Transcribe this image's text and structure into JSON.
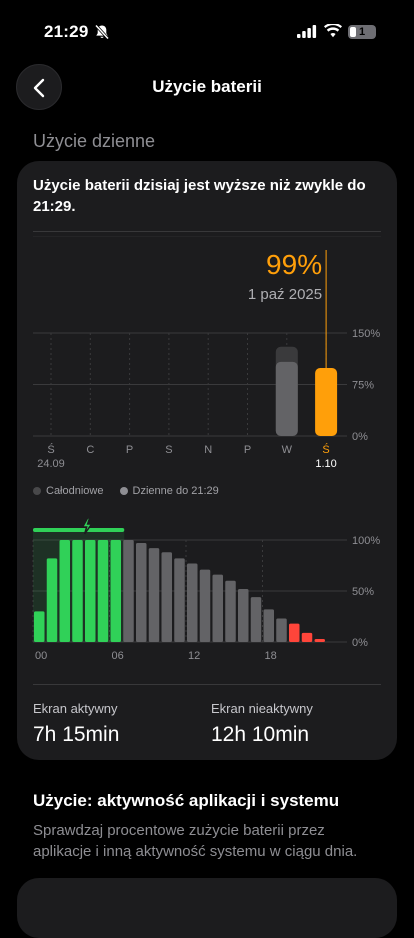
{
  "status": {
    "time": "21:29",
    "battery_level": "1",
    "icons": [
      "bell-slash-icon",
      "signal-icon",
      "wifi-icon",
      "battery-icon"
    ]
  },
  "nav": {
    "title": "Użycie baterii",
    "back_icon": "chevron-left-icon"
  },
  "section": {
    "title": "Użycie dzienne"
  },
  "card": {
    "message": "Użycie baterii dzisiaj jest wyższe niż zwykle do 21:29."
  },
  "chart_data": [
    {
      "type": "bar",
      "highlight": {
        "value": "99%",
        "date": "1 paź 2025"
      },
      "categories": [
        "Ś",
        "C",
        "P",
        "S",
        "N",
        "P",
        "W",
        "Ś"
      ],
      "category_sublabels": [
        "24.09",
        "",
        "",
        "",
        "",
        "",
        "",
        "1.10"
      ],
      "y_ticks": [
        "150%",
        "75%",
        "0%"
      ],
      "ylim": [
        0,
        150
      ],
      "series": [
        {
          "name": "Całodniowe",
          "values": [
            0,
            0,
            0,
            0,
            0,
            0,
            130,
            0
          ]
        },
        {
          "name": "Dzienne do 21:29",
          "values": [
            0,
            0,
            0,
            0,
            0,
            0,
            108,
            99
          ]
        }
      ],
      "colors": {
        "full_day": "#3a3a3c",
        "to_time": "#636366",
        "today": "#ff9f0a"
      }
    },
    {
      "type": "bar",
      "x_ticks": [
        "00",
        "06",
        "12",
        "18"
      ],
      "y_ticks": [
        "100%",
        "50%",
        "0%"
      ],
      "ylim": [
        0,
        100
      ],
      "charging_icon": "bolt-icon",
      "values": [
        30,
        82,
        100,
        100,
        100,
        100,
        100,
        100,
        97,
        92,
        88,
        82,
        77,
        71,
        66,
        60,
        52,
        44,
        32,
        23,
        18,
        9,
        3
      ],
      "colors": {
        "charging": "#30d158",
        "normal": "#636366",
        "low": "#ff453a"
      }
    }
  ],
  "legend": [
    {
      "label": "Całodniowe"
    },
    {
      "label": "Dzienne do 21:29"
    }
  ],
  "stats": [
    {
      "label": "Ekran aktywny",
      "value": "7h 15min"
    },
    {
      "label": "Ekran nieaktywny",
      "value": "12h 10min"
    }
  ],
  "usage": {
    "title": "Użycie: aktywność aplikacji i systemu",
    "description": "Sprawdzaj procentowe zużycie baterii przez aplikacje i inną aktywność systemu w ciągu dnia."
  }
}
